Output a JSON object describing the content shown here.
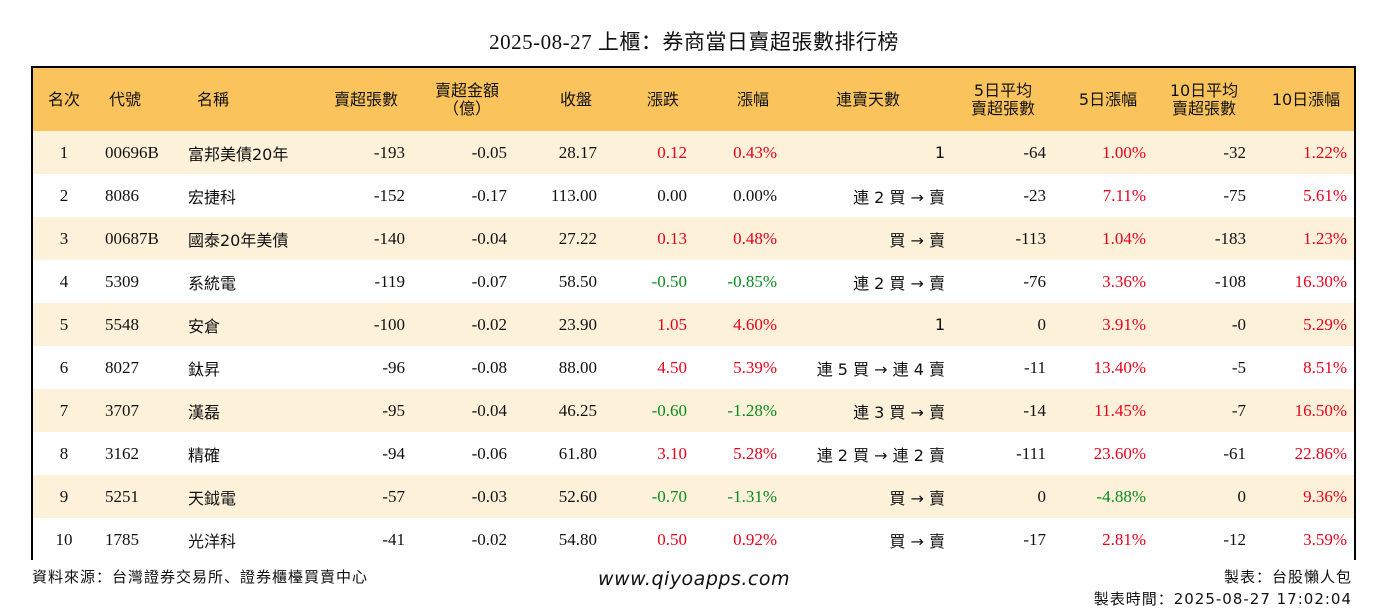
{
  "title": "2025-08-27 上櫃：券商當日賣超張數排行榜",
  "headers": {
    "rank": "名次",
    "code": "代號",
    "name": "名稱",
    "qty": "賣超張數",
    "amount_line1": "賣超金額",
    "amount_line2": "（億）",
    "close": "收盤",
    "change": "漲跌",
    "pct": "漲幅",
    "days": "連賣天數",
    "avg5_line1": "5日平均",
    "avg5_line2": "賣超張數",
    "pct5": "5日漲幅",
    "avg10_line1": "10日平均",
    "avg10_line2": "賣超張數",
    "pct10": "10日漲幅"
  },
  "rows": [
    {
      "rank": "1",
      "code": "00696B",
      "name": "富邦美債20年",
      "qty": "-193",
      "amount": "-0.05",
      "close": "28.17",
      "change": "0.12",
      "pct": "0.43%",
      "days": "1",
      "avg5": "-64",
      "pct5": "1.00%",
      "avg10": "-32",
      "pct10": "1.22%"
    },
    {
      "rank": "2",
      "code": "8086",
      "name": "宏捷科",
      "qty": "-152",
      "amount": "-0.17",
      "close": "113.00",
      "change": "0.00",
      "pct": "0.00%",
      "days": "連 2 買 → 賣",
      "avg5": "-23",
      "pct5": "7.11%",
      "avg10": "-75",
      "pct10": "5.61%"
    },
    {
      "rank": "3",
      "code": "00687B",
      "name": "國泰20年美債",
      "qty": "-140",
      "amount": "-0.04",
      "close": "27.22",
      "change": "0.13",
      "pct": "0.48%",
      "days": "買 → 賣",
      "avg5": "-113",
      "pct5": "1.04%",
      "avg10": "-183",
      "pct10": "1.23%"
    },
    {
      "rank": "4",
      "code": "5309",
      "name": "系統電",
      "qty": "-119",
      "amount": "-0.07",
      "close": "58.50",
      "change": "-0.50",
      "pct": "-0.85%",
      "days": "連 2 買 → 賣",
      "avg5": "-76",
      "pct5": "3.36%",
      "avg10": "-108",
      "pct10": "16.30%"
    },
    {
      "rank": "5",
      "code": "5548",
      "name": "安倉",
      "qty": "-100",
      "amount": "-0.02",
      "close": "23.90",
      "change": "1.05",
      "pct": "4.60%",
      "days": "1",
      "avg5": "0",
      "pct5": "3.91%",
      "avg10": "-0",
      "pct10": "5.29%"
    },
    {
      "rank": "6",
      "code": "8027",
      "name": "鈦昇",
      "qty": "-96",
      "amount": "-0.08",
      "close": "88.00",
      "change": "4.50",
      "pct": "5.39%",
      "days": "連 5 買 → 連 4 賣",
      "avg5": "-11",
      "pct5": "13.40%",
      "avg10": "-5",
      "pct10": "8.51%"
    },
    {
      "rank": "7",
      "code": "3707",
      "name": "漢磊",
      "qty": "-95",
      "amount": "-0.04",
      "close": "46.25",
      "change": "-0.60",
      "pct": "-1.28%",
      "days": "連 3 買 → 賣",
      "avg5": "-14",
      "pct5": "11.45%",
      "avg10": "-7",
      "pct10": "16.50%"
    },
    {
      "rank": "8",
      "code": "3162",
      "name": "精確",
      "qty": "-94",
      "amount": "-0.06",
      "close": "61.80",
      "change": "3.10",
      "pct": "5.28%",
      "days": "連 2 買 → 連 2 賣",
      "avg5": "-111",
      "pct5": "23.60%",
      "avg10": "-61",
      "pct10": "22.86%"
    },
    {
      "rank": "9",
      "code": "5251",
      "name": "天鉞電",
      "qty": "-57",
      "amount": "-0.03",
      "close": "52.60",
      "change": "-0.70",
      "pct": "-1.31%",
      "days": "買 → 賣",
      "avg5": "0",
      "pct5": "-4.88%",
      "avg10": "0",
      "pct10": "9.36%"
    },
    {
      "rank": "10",
      "code": "1785",
      "name": "光洋科",
      "qty": "-41",
      "amount": "-0.02",
      "close": "54.80",
      "change": "0.50",
      "pct": "0.92%",
      "days": "買 → 賣",
      "avg5": "-17",
      "pct5": "2.81%",
      "avg10": "-12",
      "pct10": "3.59%"
    }
  ],
  "colors": {
    "header_bg": "#fac35c",
    "odd_row_bg": "#fdf1da",
    "up": "#e8001c",
    "down": "#0a8a1e"
  },
  "footer": {
    "source": "資料來源：台灣證券交易所、證券櫃檯買賣中心",
    "website": "www.qiyoapps.com",
    "author": "製表：台股懶人包",
    "time": "製表時間：2025-08-27 17:02:04"
  }
}
